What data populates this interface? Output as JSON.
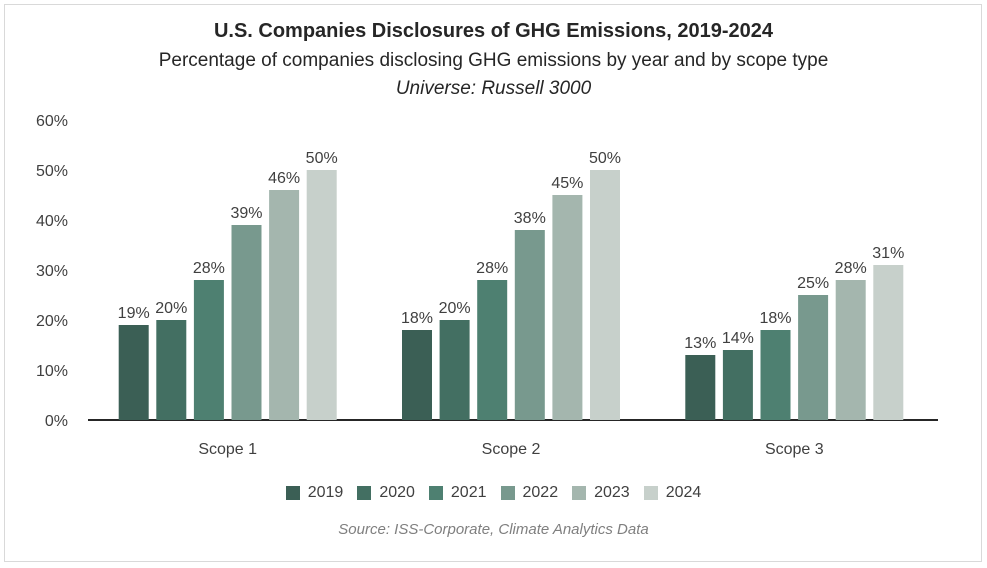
{
  "title": "U.S. Companies Disclosures of GHG Emissions, 2019-2024",
  "subtitle": "Percentage of companies disclosing GHG emissions by year and by scope type",
  "universe": "Universe: Russell 3000",
  "source": "Source: ISS-Corporate, Climate Analytics Data",
  "chart_data": {
    "type": "bar",
    "categories": [
      "Scope 1",
      "Scope 2",
      "Scope 3"
    ],
    "series": [
      {
        "name": "2019",
        "color": "#3b5f55",
        "values": [
          19,
          18,
          13
        ],
        "labels": [
          "19%",
          "18%",
          "13%"
        ]
      },
      {
        "name": "2020",
        "color": "#436f62",
        "values": [
          20,
          20,
          14
        ],
        "labels": [
          "20%",
          "20%",
          "14%"
        ]
      },
      {
        "name": "2021",
        "color": "#4e8071",
        "values": [
          28,
          28,
          18
        ],
        "labels": [
          "28%",
          "28%",
          "18%"
        ]
      },
      {
        "name": "2022",
        "color": "#78998e",
        "values": [
          39,
          38,
          25
        ],
        "labels": [
          "39%",
          "38%",
          "25%"
        ]
      },
      {
        "name": "2023",
        "color": "#a4b6ae",
        "values": [
          46,
          45,
          28
        ],
        "labels": [
          "46%",
          "45%",
          "28%"
        ]
      },
      {
        "name": "2024",
        "color": "#c7d0cb",
        "values": [
          50,
          50,
          31
        ],
        "labels": [
          "50%",
          "50%",
          "31%"
        ]
      }
    ],
    "yticks": [
      "0%",
      "10%",
      "20%",
      "30%",
      "40%",
      "50%",
      "60%"
    ],
    "ylim": [
      0,
      60
    ],
    "grid": false,
    "legend_position": "bottom"
  }
}
